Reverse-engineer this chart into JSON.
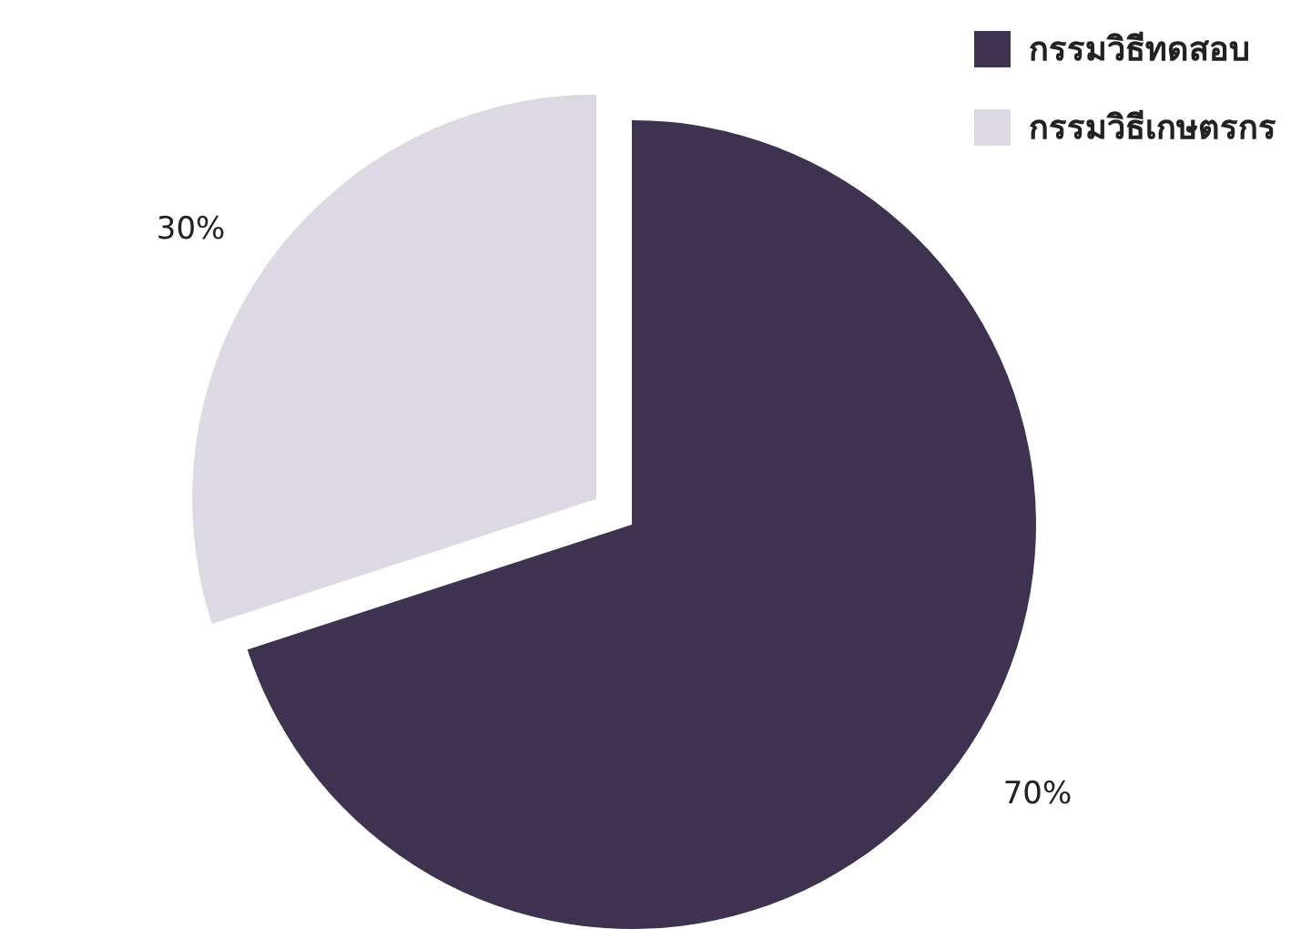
{
  "chart_data": {
    "type": "pie",
    "categories": [
      "กรรมวิธีทดสอบ",
      "กรรมวิธีเกษตรกร"
    ],
    "values": [
      70,
      30
    ],
    "colors": [
      "#3f3150",
      "#dcd8e4"
    ],
    "value_labels": [
      "70%",
      "30%"
    ],
    "legend": "top right"
  }
}
